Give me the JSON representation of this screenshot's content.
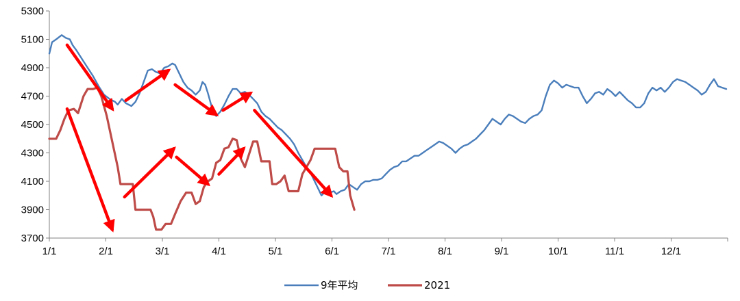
{
  "chart_data": {
    "type": "line",
    "title": "",
    "xlabel": "",
    "ylabel": "",
    "ylim": [
      3700,
      5300
    ],
    "yticks": [
      3700,
      3900,
      4100,
      4300,
      4500,
      4700,
      4900,
      5100,
      5300
    ],
    "x_tick_labels": [
      "1/1",
      "2/1",
      "3/1",
      "4/1",
      "5/1",
      "6/1",
      "7/1",
      "8/1",
      "9/1",
      "10/1",
      "11/1",
      "12/1"
    ],
    "grid": false,
    "legend_position": "bottom",
    "series": [
      {
        "name": "9年平均",
        "color": "#4a7ebb",
        "points": [
          [
            0,
            5000
          ],
          [
            2,
            5080
          ],
          [
            5,
            5100
          ],
          [
            9,
            5130
          ],
          [
            12,
            5110
          ],
          [
            15,
            5100
          ],
          [
            17,
            5060
          ],
          [
            20,
            5020
          ],
          [
            24,
            4960
          ],
          [
            28,
            4900
          ],
          [
            32,
            4840
          ],
          [
            36,
            4770
          ],
          [
            40,
            4710
          ],
          [
            44,
            4680
          ],
          [
            48,
            4660
          ],
          [
            50,
            4640
          ],
          [
            53,
            4680
          ],
          [
            56,
            4650
          ],
          [
            60,
            4630
          ],
          [
            63,
            4660
          ],
          [
            66,
            4720
          ],
          [
            69,
            4800
          ],
          [
            72,
            4880
          ],
          [
            75,
            4890
          ],
          [
            78,
            4870
          ],
          [
            81,
            4860
          ],
          [
            84,
            4900
          ],
          [
            87,
            4910
          ],
          [
            90,
            4930
          ],
          [
            92,
            4920
          ],
          [
            95,
            4860
          ],
          [
            98,
            4800
          ],
          [
            101,
            4760
          ],
          [
            104,
            4740
          ],
          [
            107,
            4710
          ],
          [
            110,
            4740
          ],
          [
            112,
            4800
          ],
          [
            114,
            4780
          ],
          [
            116,
            4720
          ],
          [
            118,
            4650
          ],
          [
            120,
            4580
          ],
          [
            122,
            4560
          ],
          [
            125,
            4590
          ],
          [
            128,
            4640
          ],
          [
            131,
            4700
          ],
          [
            134,
            4750
          ],
          [
            137,
            4750
          ],
          [
            140,
            4720
          ],
          [
            143,
            4730
          ],
          [
            146,
            4710
          ],
          [
            149,
            4680
          ],
          [
            152,
            4650
          ],
          [
            155,
            4590
          ],
          [
            158,
            4560
          ],
          [
            161,
            4540
          ],
          [
            164,
            4510
          ],
          [
            167,
            4480
          ],
          [
            170,
            4460
          ],
          [
            173,
            4430
          ],
          [
            176,
            4400
          ],
          [
            179,
            4360
          ],
          [
            182,
            4300
          ],
          [
            185,
            4250
          ],
          [
            188,
            4200
          ],
          [
            191,
            4160
          ],
          [
            194,
            4100
          ],
          [
            197,
            4040
          ],
          [
            199,
            4000
          ],
          [
            202,
            4030
          ],
          [
            205,
            4020
          ],
          [
            208,
            4030
          ],
          [
            210,
            4010
          ],
          [
            213,
            4030
          ],
          [
            216,
            4040
          ],
          [
            219,
            4080
          ],
          [
            222,
            4060
          ],
          [
            225,
            4040
          ],
          [
            228,
            4080
          ],
          [
            231,
            4100
          ],
          [
            234,
            4100
          ],
          [
            237,
            4110
          ],
          [
            240,
            4110
          ],
          [
            243,
            4120
          ],
          [
            246,
            4150
          ],
          [
            249,
            4180
          ],
          [
            252,
            4200
          ],
          [
            255,
            4210
          ],
          [
            258,
            4240
          ],
          [
            261,
            4240
          ],
          [
            264,
            4260
          ],
          [
            267,
            4280
          ],
          [
            270,
            4280
          ],
          [
            273,
            4300
          ],
          [
            276,
            4320
          ],
          [
            279,
            4340
          ],
          [
            282,
            4360
          ],
          [
            285,
            4380
          ],
          [
            288,
            4370
          ],
          [
            291,
            4350
          ],
          [
            294,
            4330
          ],
          [
            297,
            4300
          ],
          [
            300,
            4330
          ],
          [
            303,
            4350
          ],
          [
            306,
            4360
          ],
          [
            309,
            4380
          ],
          [
            312,
            4400
          ],
          [
            315,
            4430
          ],
          [
            318,
            4460
          ],
          [
            321,
            4500
          ],
          [
            324,
            4540
          ],
          [
            327,
            4520
          ],
          [
            330,
            4500
          ],
          [
            333,
            4540
          ],
          [
            336,
            4570
          ],
          [
            339,
            4560
          ],
          [
            342,
            4540
          ],
          [
            345,
            4520
          ],
          [
            348,
            4510
          ],
          [
            351,
            4540
          ],
          [
            354,
            4560
          ],
          [
            357,
            4570
          ],
          [
            360,
            4600
          ],
          [
            363,
            4700
          ],
          [
            366,
            4780
          ],
          [
            369,
            4810
          ],
          [
            372,
            4790
          ],
          [
            375,
            4760
          ],
          [
            378,
            4780
          ],
          [
            381,
            4770
          ],
          [
            384,
            4760
          ],
          [
            387,
            4760
          ],
          [
            390,
            4700
          ],
          [
            393,
            4650
          ],
          [
            396,
            4680
          ],
          [
            399,
            4720
          ],
          [
            402,
            4730
          ],
          [
            405,
            4710
          ],
          [
            408,
            4750
          ],
          [
            411,
            4730
          ],
          [
            414,
            4700
          ],
          [
            417,
            4730
          ],
          [
            420,
            4700
          ],
          [
            423,
            4670
          ],
          [
            426,
            4650
          ],
          [
            429,
            4620
          ],
          [
            432,
            4620
          ],
          [
            435,
            4650
          ],
          [
            438,
            4720
          ],
          [
            441,
            4760
          ],
          [
            444,
            4740
          ],
          [
            447,
            4760
          ],
          [
            450,
            4730
          ],
          [
            453,
            4760
          ],
          [
            456,
            4800
          ],
          [
            459,
            4820
          ],
          [
            462,
            4810
          ],
          [
            465,
            4800
          ],
          [
            468,
            4780
          ],
          [
            471,
            4760
          ],
          [
            474,
            4740
          ],
          [
            477,
            4710
          ],
          [
            480,
            4730
          ],
          [
            483,
            4780
          ],
          [
            486,
            4820
          ],
          [
            489,
            4770
          ],
          [
            492,
            4760
          ],
          [
            495,
            4750
          ]
        ]
      },
      {
        "name": "2021",
        "color": "#be4b48",
        "points": [
          [
            0,
            4400
          ],
          [
            5,
            4400
          ],
          [
            8,
            4460
          ],
          [
            11,
            4540
          ],
          [
            14,
            4600
          ],
          [
            18,
            4610
          ],
          [
            21,
            4580
          ],
          [
            25,
            4700
          ],
          [
            28,
            4750
          ],
          [
            32,
            4750
          ],
          [
            35,
            4760
          ],
          [
            38,
            4700
          ],
          [
            42,
            4560
          ],
          [
            46,
            4380
          ],
          [
            50,
            4200
          ],
          [
            52,
            4080
          ],
          [
            55,
            4080
          ],
          [
            58,
            4080
          ],
          [
            61,
            4080
          ],
          [
            63,
            3900
          ],
          [
            66,
            3900
          ],
          [
            70,
            3900
          ],
          [
            74,
            3900
          ],
          [
            76,
            3850
          ],
          [
            78,
            3760
          ],
          [
            82,
            3760
          ],
          [
            85,
            3800
          ],
          [
            89,
            3800
          ],
          [
            92,
            3870
          ],
          [
            96,
            3960
          ],
          [
            100,
            4020
          ],
          [
            104,
            4020
          ],
          [
            107,
            3940
          ],
          [
            110,
            3960
          ],
          [
            113,
            4060
          ],
          [
            116,
            4100
          ],
          [
            119,
            4120
          ],
          [
            122,
            4230
          ],
          [
            125,
            4250
          ],
          [
            128,
            4330
          ],
          [
            131,
            4340
          ],
          [
            134,
            4400
          ],
          [
            137,
            4390
          ],
          [
            140,
            4260
          ],
          [
            143,
            4200
          ],
          [
            146,
            4290
          ],
          [
            149,
            4380
          ],
          [
            152,
            4380
          ],
          [
            155,
            4240
          ],
          [
            158,
            4240
          ],
          [
            161,
            4240
          ],
          [
            163,
            4080
          ],
          [
            166,
            4080
          ],
          [
            169,
            4100
          ],
          [
            172,
            4140
          ],
          [
            175,
            4030
          ],
          [
            179,
            4030
          ],
          [
            182,
            4030
          ],
          [
            185,
            4150
          ],
          [
            188,
            4200
          ],
          [
            191,
            4250
          ],
          [
            194,
            4330
          ],
          [
            197,
            4330
          ],
          [
            200,
            4330
          ],
          [
            203,
            4330
          ],
          [
            206,
            4330
          ],
          [
            209,
            4330
          ],
          [
            212,
            4200
          ],
          [
            215,
            4170
          ],
          [
            218,
            4170
          ],
          [
            220,
            4000
          ],
          [
            223,
            3900
          ]
        ]
      }
    ],
    "annotations": {
      "type": "arrows",
      "color": "#ff0000",
      "arrows": [
        [
          [
            13,
            5060
          ],
          [
            46,
            4610
          ]
        ],
        [
          [
            56,
            4670
          ],
          [
            87,
            4880
          ]
        ],
        [
          [
            92,
            4780
          ],
          [
            122,
            4570
          ]
        ],
        [
          [
            127,
            4600
          ],
          [
            147,
            4720
          ]
        ],
        [
          [
            150,
            4600
          ],
          [
            206,
            4000
          ]
        ],
        [
          [
            13,
            4610
          ],
          [
            46,
            3760
          ]
        ],
        [
          [
            55,
            3990
          ],
          [
            91,
            4330
          ]
        ],
        [
          [
            93,
            4270
          ],
          [
            116,
            4080
          ]
        ],
        [
          [
            124,
            4150
          ],
          [
            142,
            4330
          ]
        ]
      ]
    }
  }
}
